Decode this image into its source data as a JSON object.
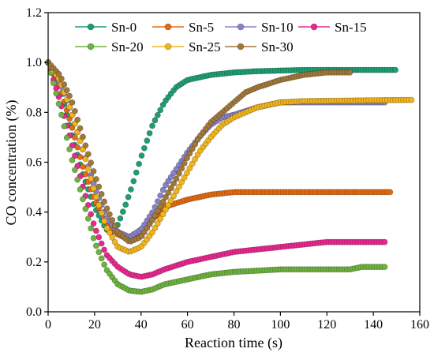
{
  "chart_data": {
    "type": "scatter",
    "xlabel": "Reaction time  (s)",
    "ylabel": "CO concentration  (%)",
    "xlim": [
      0,
      160
    ],
    "ylim": [
      0,
      1.2
    ],
    "xticks": [
      "0",
      "20",
      "40",
      "60",
      "80",
      "100",
      "120",
      "140",
      "160"
    ],
    "yticks": [
      "0.0",
      "0.2",
      "0.4",
      "0.6",
      "0.8",
      "1.0",
      "1.2"
    ],
    "legend_position": "top-right, two rows",
    "series": [
      {
        "name": "Sn-0",
        "color": "#1f9e74",
        "points": [
          [
            0,
            1.0
          ],
          [
            5,
            0.9
          ],
          [
            10,
            0.72
          ],
          [
            15,
            0.55
          ],
          [
            20,
            0.42
          ],
          [
            25,
            0.33
          ],
          [
            28,
            0.32
          ],
          [
            30,
            0.35
          ],
          [
            33,
            0.42
          ],
          [
            36,
            0.5
          ],
          [
            40,
            0.62
          ],
          [
            45,
            0.75
          ],
          [
            50,
            0.84
          ],
          [
            55,
            0.9
          ],
          [
            60,
            0.93
          ],
          [
            70,
            0.95
          ],
          [
            80,
            0.96
          ],
          [
            90,
            0.965
          ],
          [
            110,
            0.97
          ],
          [
            150,
            0.97
          ]
        ]
      },
      {
        "name": "Sn-5",
        "color": "#e36a12",
        "points": [
          [
            0,
            1.0
          ],
          [
            5,
            0.9
          ],
          [
            10,
            0.75
          ],
          [
            15,
            0.58
          ],
          [
            20,
            0.45
          ],
          [
            25,
            0.36
          ],
          [
            30,
            0.31
          ],
          [
            35,
            0.29
          ],
          [
            40,
            0.31
          ],
          [
            45,
            0.37
          ],
          [
            50,
            0.42
          ],
          [
            60,
            0.45
          ],
          [
            70,
            0.47
          ],
          [
            80,
            0.48
          ],
          [
            100,
            0.48
          ],
          [
            148,
            0.48
          ]
        ]
      },
      {
        "name": "Sn-10",
        "color": "#8682c8",
        "points": [
          [
            0,
            1.0
          ],
          [
            5,
            0.92
          ],
          [
            10,
            0.8
          ],
          [
            15,
            0.65
          ],
          [
            20,
            0.5
          ],
          [
            25,
            0.38
          ],
          [
            30,
            0.32
          ],
          [
            35,
            0.3
          ],
          [
            40,
            0.33
          ],
          [
            45,
            0.4
          ],
          [
            50,
            0.5
          ],
          [
            55,
            0.57
          ],
          [
            60,
            0.64
          ],
          [
            65,
            0.7
          ],
          [
            70,
            0.75
          ],
          [
            75,
            0.78
          ],
          [
            80,
            0.79
          ],
          [
            90,
            0.82
          ],
          [
            100,
            0.84
          ],
          [
            145,
            0.84
          ]
        ]
      },
      {
        "name": "Sn-15",
        "color": "#e8288f",
        "points": [
          [
            0,
            1.0
          ],
          [
            5,
            0.85
          ],
          [
            10,
            0.68
          ],
          [
            15,
            0.5
          ],
          [
            20,
            0.34
          ],
          [
            25,
            0.23
          ],
          [
            30,
            0.18
          ],
          [
            35,
            0.15
          ],
          [
            40,
            0.14
          ],
          [
            45,
            0.15
          ],
          [
            50,
            0.17
          ],
          [
            60,
            0.2
          ],
          [
            70,
            0.22
          ],
          [
            80,
            0.24
          ],
          [
            90,
            0.25
          ],
          [
            100,
            0.26
          ],
          [
            110,
            0.27
          ],
          [
            120,
            0.28
          ],
          [
            145,
            0.28
          ]
        ]
      },
      {
        "name": "Sn-20",
        "color": "#6db33f",
        "points": [
          [
            0,
            1.0
          ],
          [
            5,
            0.82
          ],
          [
            10,
            0.62
          ],
          [
            15,
            0.45
          ],
          [
            20,
            0.28
          ],
          [
            25,
            0.17
          ],
          [
            30,
            0.11
          ],
          [
            35,
            0.085
          ],
          [
            40,
            0.08
          ],
          [
            45,
            0.09
          ],
          [
            50,
            0.11
          ],
          [
            60,
            0.13
          ],
          [
            70,
            0.15
          ],
          [
            80,
            0.16
          ],
          [
            100,
            0.17
          ],
          [
            130,
            0.17
          ],
          [
            135,
            0.18
          ],
          [
            146,
            0.18
          ]
        ]
      },
      {
        "name": "Sn-25",
        "color": "#f0b51c",
        "points": [
          [
            0,
            1.0
          ],
          [
            5,
            0.93
          ],
          [
            10,
            0.8
          ],
          [
            15,
            0.65
          ],
          [
            20,
            0.48
          ],
          [
            25,
            0.34
          ],
          [
            30,
            0.26
          ],
          [
            35,
            0.24
          ],
          [
            40,
            0.26
          ],
          [
            45,
            0.32
          ],
          [
            50,
            0.4
          ],
          [
            55,
            0.48
          ],
          [
            60,
            0.56
          ],
          [
            65,
            0.64
          ],
          [
            70,
            0.7
          ],
          [
            75,
            0.75
          ],
          [
            80,
            0.78
          ],
          [
            90,
            0.82
          ],
          [
            100,
            0.84
          ],
          [
            110,
            0.845
          ],
          [
            157,
            0.85
          ]
        ]
      },
      {
        "name": "Sn-30",
        "color": "#a1783a",
        "points": [
          [
            0,
            1.0
          ],
          [
            5,
            0.95
          ],
          [
            10,
            0.85
          ],
          [
            15,
            0.7
          ],
          [
            20,
            0.55
          ],
          [
            25,
            0.42
          ],
          [
            30,
            0.32
          ],
          [
            35,
            0.28
          ],
          [
            40,
            0.3
          ],
          [
            45,
            0.37
          ],
          [
            50,
            0.45
          ],
          [
            55,
            0.53
          ],
          [
            60,
            0.62
          ],
          [
            65,
            0.7
          ],
          [
            70,
            0.76
          ],
          [
            75,
            0.8
          ],
          [
            80,
            0.84
          ],
          [
            85,
            0.88
          ],
          [
            90,
            0.9
          ],
          [
            100,
            0.93
          ],
          [
            110,
            0.95
          ],
          [
            120,
            0.96
          ],
          [
            130,
            0.96
          ]
        ]
      }
    ]
  }
}
